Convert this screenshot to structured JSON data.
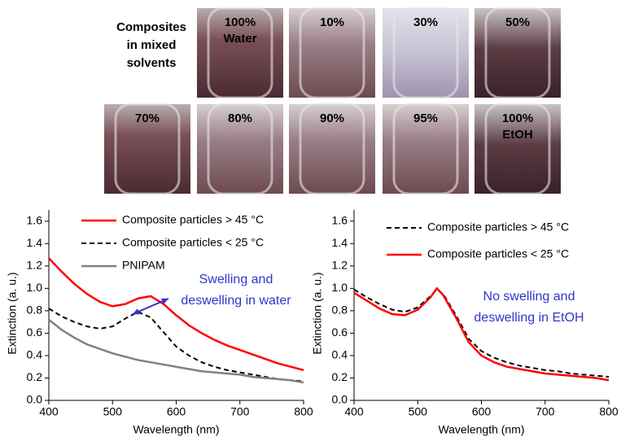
{
  "photos": {
    "title": [
      "Composites",
      "in mixed",
      "solvents"
    ],
    "labels": [
      [
        "100%",
        "Water"
      ],
      [
        "10%"
      ],
      [
        "30%"
      ],
      [
        "50%"
      ],
      [
        "70%"
      ],
      [
        "80%"
      ],
      [
        "90%"
      ],
      [
        "95%"
      ],
      [
        "100%",
        "EtOH"
      ]
    ]
  },
  "chart_data": [
    {
      "type": "line",
      "xlabel": "Wavelength  (nm)",
      "ylabel": "Extinction (a. u.)",
      "xlim": [
        400,
        800
      ],
      "xticks": [
        400,
        500,
        600,
        700,
        800
      ],
      "ylim": [
        0,
        1.7
      ],
      "yticks": [
        {
          "value": 0,
          "label": "0.0"
        },
        0.2,
        0.4,
        0.6,
        0.8,
        {
          "value": 1,
          "label": "1.0"
        },
        1.2,
        1.4,
        1.6
      ],
      "legend": "upper left",
      "annotation": [
        "Swelling and",
        "deswelling in water"
      ],
      "annotation_color": "#3333cc",
      "x": [
        400,
        420,
        440,
        460,
        480,
        500,
        520,
        540,
        560,
        580,
        600,
        620,
        640,
        660,
        680,
        700,
        720,
        740,
        760,
        780,
        800
      ],
      "series": [
        {
          "name": "Composite particles > 45 °C",
          "color": "#ff0000",
          "dash": false,
          "values": [
            1.27,
            1.15,
            1.04,
            0.95,
            0.88,
            0.84,
            0.86,
            0.91,
            0.93,
            0.86,
            0.76,
            0.67,
            0.6,
            0.54,
            0.49,
            0.45,
            0.41,
            0.37,
            0.33,
            0.3,
            0.27
          ]
        },
        {
          "name": "Composite particles < 25 °C",
          "color": "#000000",
          "dash": true,
          "values": [
            0.82,
            0.75,
            0.7,
            0.66,
            0.64,
            0.66,
            0.73,
            0.79,
            0.74,
            0.61,
            0.48,
            0.4,
            0.34,
            0.3,
            0.27,
            0.25,
            0.23,
            0.21,
            0.19,
            0.18,
            0.17
          ]
        },
        {
          "name": "PNIPAM",
          "color": "#808080",
          "dash": false,
          "values": [
            0.72,
            0.63,
            0.56,
            0.5,
            0.46,
            0.42,
            0.39,
            0.36,
            0.34,
            0.32,
            0.3,
            0.28,
            0.26,
            0.25,
            0.24,
            0.23,
            0.21,
            0.2,
            0.19,
            0.18,
            0.16
          ]
        }
      ]
    },
    {
      "type": "line",
      "xlabel": "Wavelength  (nm)",
      "ylabel": "Extinction (a. u.)",
      "xlim": [
        400,
        800
      ],
      "xticks": [
        400,
        500,
        600,
        700,
        800
      ],
      "ylim": [
        0,
        1.7
      ],
      "yticks": [
        {
          "value": 0,
          "label": "0.0"
        },
        0.2,
        0.4,
        0.6,
        0.8,
        {
          "value": 1,
          "label": "1.0"
        },
        1.2,
        1.4,
        1.6
      ],
      "legend": "upper left",
      "annotation": [
        "No swelling and",
        "deswelling in EtOH"
      ],
      "annotation_color": "#3333cc",
      "x": [
        400,
        420,
        440,
        460,
        480,
        500,
        520,
        530,
        540,
        560,
        580,
        600,
        620,
        640,
        660,
        680,
        700,
        720,
        740,
        760,
        780,
        800
      ],
      "series": [
        {
          "name": "Composite particles > 45 °C",
          "color": "#000000",
          "dash": true,
          "values": [
            0.99,
            0.92,
            0.86,
            0.81,
            0.79,
            0.83,
            0.93,
            0.99,
            0.95,
            0.76,
            0.55,
            0.44,
            0.38,
            0.34,
            0.31,
            0.29,
            0.27,
            0.26,
            0.24,
            0.23,
            0.22,
            0.21
          ]
        },
        {
          "name": "Composite particles < 25 °C",
          "color": "#ff0000",
          "dash": false,
          "values": [
            0.96,
            0.89,
            0.82,
            0.77,
            0.76,
            0.81,
            0.92,
            1.0,
            0.94,
            0.74,
            0.52,
            0.4,
            0.34,
            0.3,
            0.28,
            0.26,
            0.24,
            0.23,
            0.22,
            0.21,
            0.2,
            0.18
          ]
        }
      ]
    }
  ]
}
